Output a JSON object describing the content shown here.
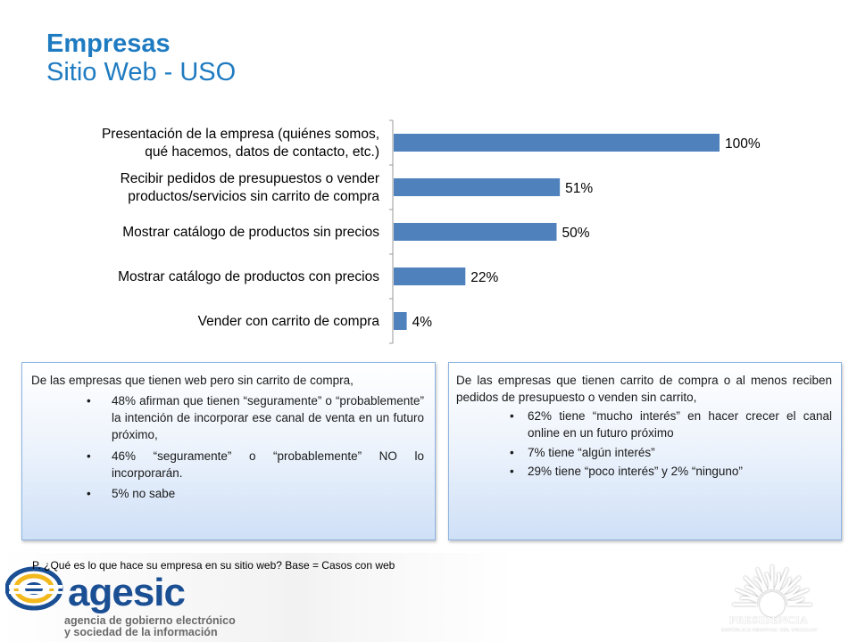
{
  "header": {
    "title": "Empresas",
    "subtitle": "Sitio Web - USO"
  },
  "chart_data": {
    "type": "bar",
    "orientation": "horizontal",
    "categories": [
      [
        "Presentación de la empresa (quiénes somos,",
        "qué hacemos, datos de contacto, etc.)"
      ],
      [
        "Recibir pedidos de presupuestos o vender",
        "productos/servicios sin carrito de compra"
      ],
      [
        "Mostrar catálogo de productos sin precios"
      ],
      [
        "Mostrar catálogo de productos con precios"
      ],
      [
        "Vender con carrito de compra"
      ]
    ],
    "values": [
      100,
      51,
      50,
      22,
      4
    ],
    "value_labels": [
      "100%",
      "51%",
      "50%",
      "22%",
      "4%"
    ],
    "xlim": [
      0,
      100
    ],
    "bar_color": "#4f81bd",
    "grid": false,
    "legend": "none"
  },
  "left_box": {
    "intro": "De las empresas que tienen web pero sin carrito de compra,",
    "bullets": [
      "48% afirman que tienen “seguramente” o “probablemente” la intención de incorporar ese canal de venta en un futuro próximo,",
      "46% “seguramente” o “probablemente” NO lo incorporarán.",
      "5% no sabe"
    ]
  },
  "right_box": {
    "intro": "De las empresas que tienen carrito de compra o al menos reciben pedidos de presupuesto o venden sin carrito,",
    "bullets": [
      "62% tiene “mucho interés” en hacer crecer el canal online en un futuro próximo",
      "7% tiene “algún interés”",
      "29% tiene “poco interés” y 2% “ninguno”"
    ]
  },
  "footnote": "P. ¿Qué es lo que hace su empresa en su sitio web? Base = Casos con web",
  "footer": {
    "agesic_name": "agesic",
    "agesic_line1": "agencia de gobierno electrónico",
    "agesic_line2": "y sociedad de la información",
    "presidencia_name": "PRESIDENCIA",
    "presidencia_sub": "REPÚBLICA ORIENTAL DEL URUGUAY"
  },
  "colors": {
    "title": "#1f7bc1",
    "bar": "#4f81bd",
    "agesic_blue": "#1b4f94",
    "agesic_yellow": "#f2b81c"
  }
}
